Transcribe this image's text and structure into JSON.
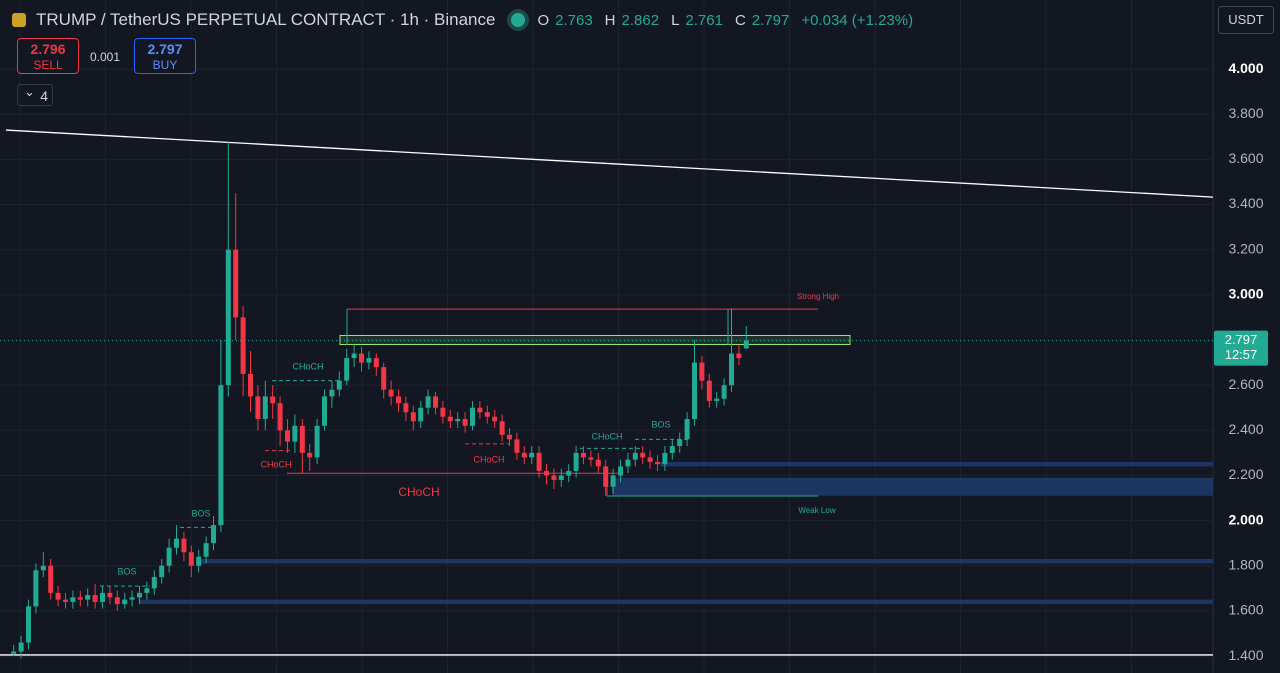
{
  "chart_data": {
    "type": "candlestick",
    "title": "TRUMP / TetherUS PERPETUAL CONTRACT · 1h · Binance",
    "header": {
      "O": 2.763,
      "H": 2.862,
      "L": 2.761,
      "C": 2.797,
      "o_label": "O",
      "h_label": "H",
      "l_label": "L",
      "c_label": "C",
      "change": "+0.034 (+1.23%)"
    },
    "up_color": "#22ab94",
    "down_color": "#f23645",
    "open": [
      1.41,
      1.42,
      1.46,
      1.62,
      1.78,
      1.8,
      1.68,
      1.65,
      1.64,
      1.66,
      1.65,
      1.67,
      1.64,
      1.68,
      1.66,
      1.63,
      1.65,
      1.66,
      1.68,
      1.7,
      1.75,
      1.8,
      1.88,
      1.92,
      1.86,
      1.8,
      1.84,
      1.9,
      1.98,
      2.6,
      3.2,
      2.9,
      2.65,
      2.55,
      2.45,
      2.55,
      2.52,
      2.4,
      2.35,
      2.42,
      2.3,
      2.28,
      2.42,
      2.55,
      2.58,
      2.62,
      2.72,
      2.74,
      2.7,
      2.72,
      2.68,
      2.58,
      2.55,
      2.52,
      2.48,
      2.44,
      2.5,
      2.55,
      2.5,
      2.46,
      2.44,
      2.45,
      2.42,
      2.5,
      2.48,
      2.46,
      2.44,
      2.38,
      2.36,
      2.3,
      2.28,
      2.3,
      2.22,
      2.2,
      2.18,
      2.2,
      2.22,
      2.3,
      2.28,
      2.27,
      2.24,
      2.15,
      2.2,
      2.24,
      2.27,
      2.3,
      2.28,
      2.26,
      2.25,
      2.3,
      2.33,
      2.36,
      2.45,
      2.7,
      2.62,
      2.53,
      2.54,
      2.6,
      2.74,
      2.763
    ],
    "high": [
      1.45,
      1.49,
      1.65,
      1.81,
      1.86,
      1.83,
      1.71,
      1.68,
      1.69,
      1.69,
      1.7,
      1.72,
      1.71,
      1.71,
      1.69,
      1.68,
      1.69,
      1.71,
      1.73,
      1.78,
      1.83,
      1.92,
      1.98,
      1.95,
      1.89,
      1.87,
      1.93,
      2.02,
      2.8,
      3.68,
      3.45,
      2.95,
      2.75,
      2.6,
      2.62,
      2.6,
      2.55,
      2.45,
      2.47,
      2.45,
      2.34,
      2.45,
      2.58,
      2.62,
      2.66,
      2.76,
      2.78,
      2.77,
      2.75,
      2.74,
      2.7,
      2.62,
      2.58,
      2.55,
      2.51,
      2.53,
      2.58,
      2.57,
      2.53,
      2.49,
      2.48,
      2.48,
      2.53,
      2.53,
      2.51,
      2.49,
      2.47,
      2.41,
      2.39,
      2.33,
      2.33,
      2.33,
      2.25,
      2.23,
      2.23,
      2.25,
      2.33,
      2.33,
      2.31,
      2.3,
      2.27,
      2.23,
      2.27,
      2.3,
      2.33,
      2.33,
      2.31,
      2.29,
      2.33,
      2.36,
      2.39,
      2.48,
      2.8,
      2.73,
      2.65,
      2.57,
      2.63,
      2.94,
      2.78,
      2.862
    ],
    "low": [
      1.4,
      1.39,
      1.43,
      1.59,
      1.75,
      1.65,
      1.62,
      1.61,
      1.61,
      1.62,
      1.62,
      1.61,
      1.61,
      1.63,
      1.6,
      1.61,
      1.62,
      1.63,
      1.65,
      1.67,
      1.72,
      1.77,
      1.85,
      1.82,
      1.75,
      1.77,
      1.81,
      1.87,
      1.95,
      2.55,
      2.8,
      2.55,
      2.48,
      2.4,
      2.4,
      2.45,
      2.33,
      2.3,
      2.3,
      2.21,
      2.22,
      2.25,
      2.4,
      2.5,
      2.55,
      2.6,
      2.68,
      2.66,
      2.67,
      2.64,
      2.54,
      2.51,
      2.48,
      2.44,
      2.4,
      2.41,
      2.47,
      2.47,
      2.43,
      2.41,
      2.41,
      2.39,
      2.4,
      2.45,
      2.43,
      2.41,
      2.35,
      2.33,
      2.27,
      2.25,
      2.25,
      2.19,
      2.16,
      2.14,
      2.15,
      2.17,
      2.19,
      2.25,
      2.24,
      2.21,
      2.11,
      2.12,
      2.17,
      2.21,
      2.24,
      2.25,
      2.23,
      2.22,
      2.22,
      2.27,
      2.3,
      2.33,
      2.42,
      2.58,
      2.5,
      2.5,
      2.51,
      2.57,
      2.69,
      2.761
    ],
    "close": [
      1.42,
      1.46,
      1.62,
      1.78,
      1.8,
      1.68,
      1.65,
      1.64,
      1.66,
      1.65,
      1.67,
      1.64,
      1.68,
      1.66,
      1.63,
      1.65,
      1.66,
      1.68,
      1.7,
      1.75,
      1.8,
      1.88,
      1.92,
      1.86,
      1.8,
      1.84,
      1.9,
      1.98,
      2.6,
      3.2,
      2.9,
      2.65,
      2.55,
      2.45,
      2.55,
      2.52,
      2.4,
      2.35,
      2.42,
      2.3,
      2.28,
      2.42,
      2.55,
      2.58,
      2.62,
      2.72,
      2.74,
      2.7,
      2.72,
      2.68,
      2.58,
      2.55,
      2.52,
      2.48,
      2.44,
      2.5,
      2.55,
      2.5,
      2.46,
      2.44,
      2.45,
      2.42,
      2.5,
      2.48,
      2.46,
      2.44,
      2.38,
      2.36,
      2.3,
      2.28,
      2.3,
      2.22,
      2.2,
      2.18,
      2.2,
      2.22,
      2.3,
      2.28,
      2.27,
      2.24,
      2.15,
      2.2,
      2.24,
      2.27,
      2.3,
      2.28,
      2.26,
      2.25,
      2.3,
      2.33,
      2.36,
      2.45,
      2.7,
      2.62,
      2.53,
      2.54,
      2.6,
      2.74,
      2.72,
      2.797
    ],
    "ylim": [
      1.325,
      4.306
    ],
    "yticks": [
      {
        "value": 1.4,
        "label": "1.400"
      },
      {
        "value": 1.6,
        "label": "1.600"
      },
      {
        "value": 1.8,
        "label": "1.800"
      },
      {
        "value": 2,
        "label": "2.000"
      },
      {
        "value": 2.2,
        "label": "2.200"
      },
      {
        "value": 2.4,
        "label": "2.400"
      },
      {
        "value": 2.6,
        "label": "2.600"
      },
      {
        "value": 2.8,
        "label": "2.800"
      },
      {
        "value": 3,
        "label": "3.000"
      },
      {
        "value": 3.2,
        "label": "3.200"
      },
      {
        "value": 3.4,
        "label": "3.400"
      },
      {
        "value": 3.6,
        "label": "3.600"
      },
      {
        "value": 3.8,
        "label": "3.800"
      },
      {
        "value": 4,
        "label": "4.000"
      }
    ],
    "grid": true,
    "price_tag": {
      "value": 2.797,
      "countdown": "12:57",
      "color": "#22ab94"
    },
    "lines": [
      {
        "prices": [
          3.73,
          3.433
        ],
        "color": "#ffffff"
      },
      {
        "prices": [
          1.405,
          1.405
        ],
        "color": "#ffffff"
      },
      {
        "prices": [
          2.937,
          2.937
        ],
        "color": "#f23645"
      },
      {
        "prices": [
          2.109,
          2.109
        ],
        "color": "#22ab94"
      },
      {
        "prices": [
          2.21,
          2.21
        ],
        "color": "#f23645"
      },
      {
        "prices": [
          1.71,
          1.71
        ],
        "color": "#22ab94"
      },
      {
        "prices": [
          1.97,
          1.97
        ],
        "color": "#22ab94"
      },
      {
        "prices": [
          2.62,
          2.62
        ],
        "color": "#22ab94"
      },
      {
        "prices": [
          2.31,
          2.31
        ],
        "color": "#f23645"
      },
      {
        "prices": [
          2.34,
          2.34
        ],
        "color": "#f23645"
      },
      {
        "prices": [
          2.32,
          2.32
        ],
        "color": "#22ab94"
      },
      {
        "prices": [
          2.36,
          2.36
        ],
        "color": "#22ab94"
      }
    ],
    "zones": [
      {
        "range": [
          2.24,
          2.26
        ],
        "color": "#1c3563"
      },
      {
        "range": [
          2.11,
          2.19
        ],
        "color": "#1c3563"
      },
      {
        "range": [
          1.81,
          1.83
        ],
        "color": "#1c3563"
      },
      {
        "range": [
          1.63,
          1.65
        ],
        "color": "#1c3563"
      },
      {
        "range": [
          2.78,
          2.82
        ],
        "color": "#9be564"
      }
    ],
    "annotations": [
      {
        "text": "CHoCH",
        "color": "#22ab94"
      },
      {
        "text": "CHoCH",
        "color": "#f23645"
      },
      {
        "text": "CHoCH",
        "color": "#f23645"
      },
      {
        "text": "CHoCH",
        "color": "#f23645"
      },
      {
        "text": "CHoCH",
        "color": "#22ab94"
      },
      {
        "text": "BOS",
        "color": "#22ab94"
      },
      {
        "text": "BOS",
        "color": "#22ab94"
      },
      {
        "text": "BOS",
        "color": "#22ab94"
      },
      {
        "text": "Strong High",
        "color": "#f23645"
      },
      {
        "text": "Weak Low",
        "color": "#22ab94"
      }
    ]
  },
  "ui": {
    "sell_price": 2.796,
    "sell_label": "SELL",
    "quantity": 0.001,
    "buy_price": 2.797,
    "buy_label": "BUY",
    "indicators": "4",
    "currency": "USDT"
  }
}
